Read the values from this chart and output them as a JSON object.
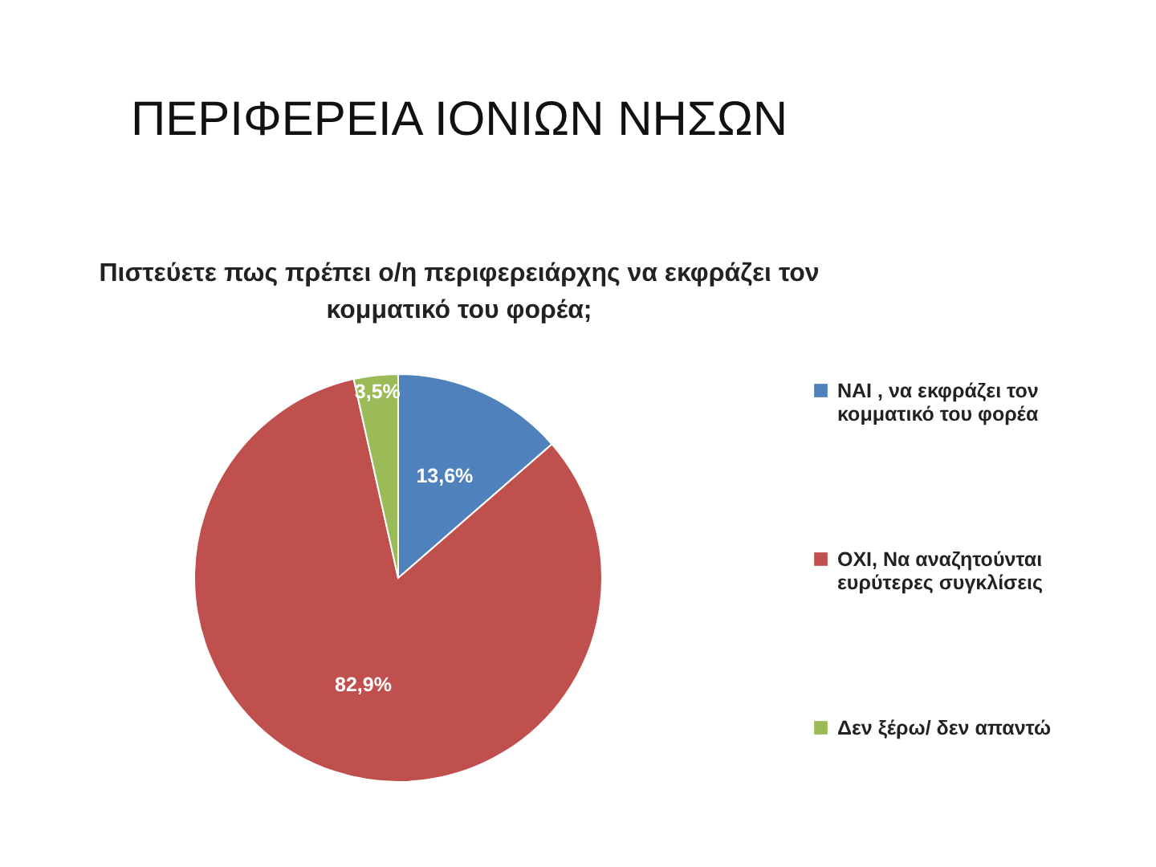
{
  "chart_data": {
    "type": "pie",
    "title": "ΠΕΡΙΦΕΡΕΙΑ ΙΟΝΙΩΝ ΝΗΣΩΝ",
    "subtitle": "Πιστεύετε πως πρέπει ο/η περιφερειάρχης να εκφράζει τον κομματικό του φορέα;",
    "categories": [
      "ΝΑΙ , να εκφράζει τον κομματικό του φορέα",
      "ΟΧΙ, Να αναζητούνται ευρύτερες συγκλίσεις",
      "Δεν ξέρω/ δεν απαντώ"
    ],
    "values": [
      13.6,
      82.9,
      3.5
    ],
    "colors": [
      "#4f81bd",
      "#c0504d",
      "#9bbb59"
    ],
    "value_labels": [
      "13,6%",
      "82,9%",
      "3,5%"
    ],
    "legend": "right"
  }
}
